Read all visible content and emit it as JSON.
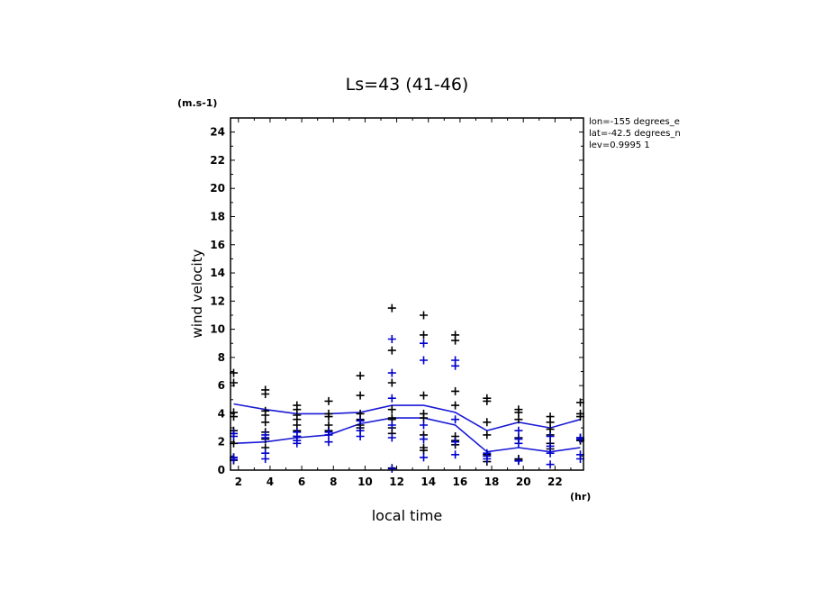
{
  "chart_data": {
    "type": "scatter",
    "title": "Ls=43 (41-46)",
    "xlabel": "local time",
    "ylabel": "wind velocity",
    "yunit": "(m.s-1)",
    "xunit": "(hr)",
    "xlim": [
      1.5,
      23.8
    ],
    "ylim": [
      0,
      25
    ],
    "xticks": [
      2,
      4,
      6,
      8,
      10,
      12,
      14,
      16,
      18,
      20,
      22
    ],
    "yticks": [
      0,
      2,
      4,
      6,
      8,
      10,
      12,
      14,
      16,
      18,
      20,
      22,
      24
    ],
    "info": [
      "lon=-155 degrees_e",
      "lat=-42.5 degrees_n",
      "lev=0.9995 1"
    ],
    "colors": {
      "black": "#000000",
      "blue": "#0000cc",
      "line": "#1a1ad6"
    },
    "series": [
      {
        "color": "black",
        "type": "scatter",
        "points": [
          [
            1.7,
            6.9
          ],
          [
            1.7,
            6.2
          ],
          [
            1.7,
            4.1
          ],
          [
            1.7,
            3.8
          ],
          [
            1.7,
            2.8
          ],
          [
            1.7,
            2.6
          ],
          [
            1.7,
            1.9
          ],
          [
            1.7,
            0.9
          ],
          [
            1.7,
            0.7
          ],
          [
            3.7,
            5.7
          ],
          [
            3.7,
            5.4
          ],
          [
            3.7,
            4.2
          ],
          [
            3.7,
            3.9
          ],
          [
            3.7,
            3.4
          ],
          [
            3.7,
            2.7
          ],
          [
            3.7,
            2.2
          ],
          [
            3.7,
            1.6
          ],
          [
            5.7,
            4.6
          ],
          [
            5.7,
            4.3
          ],
          [
            5.7,
            3.9
          ],
          [
            5.7,
            3.6
          ],
          [
            5.7,
            3.2
          ],
          [
            5.7,
            2.8
          ],
          [
            5.7,
            2.4
          ],
          [
            7.7,
            4.9
          ],
          [
            7.7,
            4.0
          ],
          [
            7.7,
            3.8
          ],
          [
            7.7,
            3.2
          ],
          [
            7.7,
            2.8
          ],
          [
            9.7,
            6.7
          ],
          [
            9.7,
            5.3
          ],
          [
            9.7,
            4.0
          ],
          [
            9.7,
            3.6
          ],
          [
            9.7,
            3.2
          ],
          [
            9.7,
            3.0
          ],
          [
            11.7,
            11.5
          ],
          [
            11.7,
            8.5
          ],
          [
            11.7,
            6.2
          ],
          [
            11.7,
            4.3
          ],
          [
            11.7,
            3.7
          ],
          [
            11.7,
            3.6
          ],
          [
            11.7,
            3.0
          ],
          [
            11.7,
            2.6
          ],
          [
            11.7,
            0.15
          ],
          [
            13.7,
            11.0
          ],
          [
            13.7,
            9.6
          ],
          [
            13.7,
            5.3
          ],
          [
            13.7,
            4.0
          ],
          [
            13.7,
            3.7
          ],
          [
            13.7,
            2.5
          ],
          [
            13.7,
            1.6
          ],
          [
            13.7,
            1.4
          ],
          [
            15.7,
            9.6
          ],
          [
            15.7,
            9.2
          ],
          [
            15.7,
            5.6
          ],
          [
            15.7,
            4.6
          ],
          [
            15.7,
            2.4
          ],
          [
            15.7,
            2.1
          ],
          [
            15.7,
            1.8
          ],
          [
            17.7,
            5.1
          ],
          [
            17.7,
            4.9
          ],
          [
            17.7,
            3.4
          ],
          [
            17.7,
            2.5
          ],
          [
            17.7,
            1.1
          ],
          [
            17.7,
            0.6
          ],
          [
            19.7,
            4.3
          ],
          [
            19.7,
            4.1
          ],
          [
            19.7,
            3.6
          ],
          [
            19.7,
            2.3
          ],
          [
            19.7,
            0.8
          ],
          [
            19.7,
            0.7
          ],
          [
            21.7,
            3.8
          ],
          [
            21.7,
            3.4
          ],
          [
            21.7,
            2.9
          ],
          [
            21.7,
            2.5
          ],
          [
            21.7,
            1.9
          ],
          [
            21.7,
            1.5
          ],
          [
            23.6,
            4.8
          ],
          [
            23.6,
            4.0
          ],
          [
            23.6,
            3.8
          ],
          [
            23.6,
            2.3
          ],
          [
            23.6,
            2.1
          ]
        ]
      },
      {
        "color": "blue",
        "type": "scatter",
        "points": [
          [
            1.7,
            2.6
          ],
          [
            1.7,
            2.4
          ],
          [
            1.7,
            0.9
          ],
          [
            1.7,
            0.75
          ],
          [
            3.7,
            2.5
          ],
          [
            3.7,
            2.3
          ],
          [
            3.7,
            1.2
          ],
          [
            3.7,
            0.8
          ],
          [
            5.7,
            2.7
          ],
          [
            5.7,
            2.4
          ],
          [
            5.7,
            2.1
          ],
          [
            5.7,
            1.9
          ],
          [
            7.7,
            2.7
          ],
          [
            7.7,
            2.5
          ],
          [
            7.7,
            2.0
          ],
          [
            9.7,
            3.5
          ],
          [
            9.7,
            2.8
          ],
          [
            9.7,
            2.4
          ],
          [
            11.7,
            9.3
          ],
          [
            11.7,
            6.9
          ],
          [
            11.7,
            5.1
          ],
          [
            11.7,
            3.2
          ],
          [
            11.7,
            2.3
          ],
          [
            11.7,
            0.1
          ],
          [
            13.7,
            9.0
          ],
          [
            13.7,
            7.8
          ],
          [
            13.7,
            3.2
          ],
          [
            13.7,
            2.2
          ],
          [
            13.7,
            0.9
          ],
          [
            15.7,
            7.8
          ],
          [
            15.7,
            7.4
          ],
          [
            15.7,
            3.6
          ],
          [
            15.7,
            2.0
          ],
          [
            15.7,
            1.1
          ],
          [
            17.7,
            1.2
          ],
          [
            17.7,
            1.0
          ],
          [
            17.7,
            0.8
          ],
          [
            19.7,
            2.8
          ],
          [
            19.7,
            2.2
          ],
          [
            19.7,
            1.9
          ],
          [
            19.7,
            0.65
          ],
          [
            21.7,
            2.4
          ],
          [
            21.7,
            1.7
          ],
          [
            21.7,
            1.2
          ],
          [
            21.7,
            0.4
          ],
          [
            23.6,
            2.3
          ],
          [
            23.6,
            2.2
          ],
          [
            23.6,
            1.1
          ],
          [
            23.6,
            0.8
          ]
        ]
      },
      {
        "color": "line",
        "type": "line",
        "points": [
          [
            1.7,
            4.7
          ],
          [
            3.7,
            4.3
          ],
          [
            5.7,
            4.0
          ],
          [
            7.7,
            4.0
          ],
          [
            9.7,
            4.1
          ],
          [
            11.7,
            4.6
          ],
          [
            13.7,
            4.6
          ],
          [
            15.7,
            4.1
          ],
          [
            17.7,
            2.8
          ],
          [
            19.7,
            3.4
          ],
          [
            21.7,
            3.0
          ],
          [
            23.6,
            3.6
          ]
        ]
      },
      {
        "color": "line",
        "type": "line",
        "points": [
          [
            1.7,
            1.9
          ],
          [
            3.7,
            2.0
          ],
          [
            5.7,
            2.3
          ],
          [
            7.7,
            2.5
          ],
          [
            9.7,
            3.3
          ],
          [
            11.7,
            3.7
          ],
          [
            13.7,
            3.7
          ],
          [
            15.7,
            3.2
          ],
          [
            17.7,
            1.3
          ],
          [
            19.7,
            1.6
          ],
          [
            21.7,
            1.3
          ],
          [
            23.6,
            1.6
          ]
        ]
      }
    ]
  }
}
